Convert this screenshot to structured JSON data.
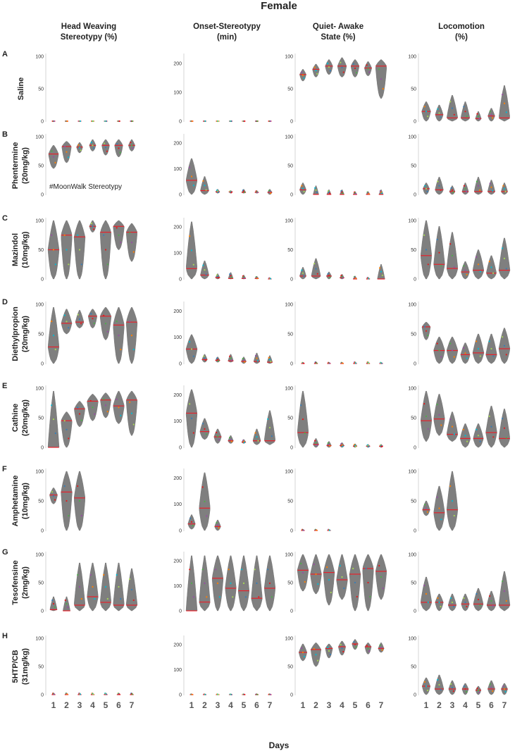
{
  "title": "Female",
  "xlabel": "Days",
  "columns": [
    {
      "key": "head_weaving",
      "line1": "Head Weaving",
      "line2": "Stereotypy (%)"
    },
    {
      "key": "onset",
      "line1": "Onset-Stereotypy",
      "line2": "(min)"
    },
    {
      "key": "quiet_awake",
      "line1": "Quiet- Awake",
      "line2": "State (%)"
    },
    {
      "key": "locomotion",
      "line1": "Locomotion",
      "line2": "(%)"
    }
  ],
  "rows": [
    {
      "letter": "A",
      "line1": "Saline",
      "line2": ""
    },
    {
      "letter": "B",
      "line1": "Phentermine",
      "line2": "(20mg/kg)"
    },
    {
      "letter": "C",
      "line1": "Mazindol",
      "line2": "(10mg/kg)"
    },
    {
      "letter": "D",
      "line1": "Diethylpropion",
      "line2": "(20mg/kg)"
    },
    {
      "letter": "E",
      "line1": "Cathine",
      "line2": "(20mg/kg)"
    },
    {
      "letter": "F",
      "line1": "Amphetamine",
      "line2": "(10mg/kg)"
    },
    {
      "letter": "G",
      "line1": "Tesofensine",
      "line2": "(2mg/kg)"
    },
    {
      "letter": "H",
      "line1": "5HTP/CB",
      "line2": "(31mg/kg)"
    }
  ],
  "annotation": {
    "row": 1,
    "col": 0,
    "text": "#MoonWalk Stereotypy"
  },
  "colors": {
    "violin": "#7f7f7f",
    "median": "#e8202a",
    "points": [
      "#e41a1c",
      "#4daf4a",
      "#984ea3",
      "#ff7f00",
      "#00bcd4",
      "#a6d854",
      "#377eb8"
    ]
  },
  "chart_data": {
    "type": "violin",
    "days": [
      "1",
      "2",
      "3",
      "4",
      "5",
      "6",
      "7"
    ],
    "yticks": {
      "head_weaving": [
        0,
        50,
        100
      ],
      "onset": [
        0,
        100,
        200
      ],
      "quiet_awake": [
        0,
        50,
        100
      ],
      "locomotion": [
        0,
        50,
        100
      ]
    },
    "ylim": {
      "head_weaving": [
        0,
        100
      ],
      "onset": [
        0,
        225
      ],
      "quiet_awake": [
        0,
        100
      ],
      "locomotion": [
        0,
        100
      ]
    },
    "panels": [
      [
        [
          [
            0,
            0,
            0
          ],
          [
            0,
            0,
            0
          ],
          [
            0,
            0,
            0
          ],
          [
            0,
            0,
            0
          ],
          [
            0,
            0,
            0
          ],
          [
            0,
            0,
            0
          ],
          [
            0,
            0,
            0
          ]
        ],
        [
          [
            0,
            0,
            0
          ],
          [
            0,
            0,
            0
          ],
          [
            0,
            0,
            0
          ],
          [
            0,
            0,
            0
          ],
          [
            0,
            0,
            0
          ],
          [
            0,
            0,
            0
          ],
          [
            0,
            0,
            0
          ]
        ],
        [
          [
            62,
            72,
            80
          ],
          [
            68,
            80,
            88
          ],
          [
            72,
            85,
            95
          ],
          [
            68,
            85,
            98
          ],
          [
            68,
            85,
            95
          ],
          [
            70,
            82,
            92
          ],
          [
            35,
            85,
            95
          ]
        ],
        [
          [
            0,
            15,
            30
          ],
          [
            0,
            10,
            25
          ],
          [
            0,
            5,
            40
          ],
          [
            0,
            5,
            30
          ],
          [
            0,
            4,
            15
          ],
          [
            0,
            8,
            20
          ],
          [
            0,
            5,
            55
          ]
        ]
      ],
      [
        [
          [
            45,
            70,
            85
          ],
          [
            55,
            83,
            92
          ],
          [
            72,
            82,
            90
          ],
          [
            75,
            85,
            95
          ],
          [
            68,
            85,
            95
          ],
          [
            65,
            85,
            95
          ],
          [
            75,
            85,
            95
          ]
        ],
        [
          [
            0,
            55,
            140
          ],
          [
            0,
            15,
            70
          ],
          [
            5,
            10,
            20
          ],
          [
            5,
            10,
            15
          ],
          [
            5,
            8,
            20
          ],
          [
            5,
            8,
            15
          ],
          [
            0,
            8,
            20
          ]
        ],
        [
          [
            0,
            8,
            20
          ],
          [
            0,
            0,
            15
          ],
          [
            0,
            0,
            8
          ],
          [
            0,
            0,
            8
          ],
          [
            0,
            0,
            5
          ],
          [
            0,
            0,
            5
          ],
          [
            0,
            0,
            8
          ]
        ],
        [
          [
            0,
            10,
            20
          ],
          [
            0,
            8,
            30
          ],
          [
            0,
            5,
            15
          ],
          [
            0,
            5,
            20
          ],
          [
            0,
            5,
            30
          ],
          [
            0,
            5,
            25
          ],
          [
            0,
            5,
            20
          ]
        ]
      ],
      [
        [
          [
            0,
            50,
            100
          ],
          [
            0,
            75,
            100
          ],
          [
            0,
            72,
            100
          ],
          [
            80,
            90,
            100
          ],
          [
            0,
            80,
            100
          ],
          [
            50,
            90,
            100
          ],
          [
            30,
            80,
            95
          ]
        ],
        [
          [
            0,
            40,
            220
          ],
          [
            0,
            15,
            70
          ],
          [
            0,
            5,
            20
          ],
          [
            0,
            2,
            25
          ],
          [
            0,
            2,
            15
          ],
          [
            0,
            2,
            10
          ],
          [
            0,
            0,
            5
          ]
        ],
        [
          [
            0,
            5,
            20
          ],
          [
            0,
            5,
            35
          ],
          [
            0,
            5,
            12
          ],
          [
            0,
            2,
            8
          ],
          [
            0,
            0,
            5
          ],
          [
            0,
            0,
            3
          ],
          [
            0,
            0,
            25
          ]
        ],
        [
          [
            0,
            40,
            100
          ],
          [
            0,
            25,
            90
          ],
          [
            0,
            18,
            80
          ],
          [
            0,
            12,
            30
          ],
          [
            0,
            15,
            50
          ],
          [
            0,
            10,
            40
          ],
          [
            0,
            15,
            70
          ]
        ]
      ],
      [
        [
          [
            0,
            28,
            95
          ],
          [
            50,
            68,
            92
          ],
          [
            60,
            70,
            90
          ],
          [
            60,
            80,
            92
          ],
          [
            40,
            80,
            95
          ],
          [
            0,
            65,
            95
          ],
          [
            0,
            70,
            95
          ]
        ],
        [
          [
            0,
            55,
            110
          ],
          [
            5,
            15,
            35
          ],
          [
            5,
            12,
            25
          ],
          [
            5,
            10,
            35
          ],
          [
            0,
            8,
            25
          ],
          [
            0,
            8,
            40
          ],
          [
            0,
            5,
            30
          ]
        ],
        [
          [
            0,
            0,
            2
          ],
          [
            0,
            0,
            3
          ],
          [
            0,
            0,
            2
          ],
          [
            0,
            0,
            2
          ],
          [
            0,
            0,
            3
          ],
          [
            0,
            0,
            3
          ],
          [
            0,
            0,
            2
          ]
        ],
        [
          [
            40,
            62,
            70
          ],
          [
            0,
            22,
            45
          ],
          [
            0,
            22,
            45
          ],
          [
            0,
            15,
            35
          ],
          [
            0,
            18,
            50
          ],
          [
            0,
            15,
            50
          ],
          [
            0,
            25,
            60
          ]
        ]
      ],
      [
        [
          [
            0,
            0,
            95
          ],
          [
            0,
            45,
            60
          ],
          [
            35,
            65,
            78
          ],
          [
            45,
            78,
            90
          ],
          [
            50,
            80,
            92
          ],
          [
            40,
            70,
            95
          ],
          [
            20,
            80,
            95
          ]
        ],
        [
          [
            0,
            130,
            220
          ],
          [
            30,
            60,
            110
          ],
          [
            15,
            40,
            70
          ],
          [
            15,
            25,
            45
          ],
          [
            15,
            20,
            30
          ],
          [
            10,
            25,
            70
          ],
          [
            10,
            25,
            140
          ]
        ],
        [
          [
            0,
            25,
            95
          ],
          [
            0,
            5,
            15
          ],
          [
            0,
            3,
            10
          ],
          [
            0,
            3,
            8
          ],
          [
            0,
            2,
            6
          ],
          [
            0,
            2,
            5
          ],
          [
            0,
            2,
            5
          ]
        ],
        [
          [
            10,
            45,
            95
          ],
          [
            20,
            48,
            90
          ],
          [
            10,
            22,
            60
          ],
          [
            0,
            15,
            40
          ],
          [
            0,
            15,
            40
          ],
          [
            0,
            25,
            70
          ],
          [
            0,
            15,
            65
          ]
        ]
      ],
      [
        [
          [
            45,
            60,
            72
          ],
          [
            0,
            65,
            100
          ],
          [
            0,
            55,
            100
          ],
          null,
          null,
          null,
          null
        ],
        [
          [
            5,
            25,
            60
          ],
          [
            0,
            85,
            220
          ],
          [
            0,
            15,
            40
          ],
          null,
          null,
          null,
          null
        ],
        [
          [
            0,
            0,
            2
          ],
          [
            0,
            0,
            2
          ],
          [
            0,
            0,
            2
          ],
          null,
          null,
          null,
          null
        ],
        [
          [
            25,
            35,
            50
          ],
          [
            0,
            30,
            75
          ],
          [
            0,
            35,
            100
          ],
          null,
          null,
          null,
          null
        ]
      ],
      [
        [
          [
            0,
            2,
            25
          ],
          [
            0,
            0,
            25
          ],
          [
            0,
            10,
            85
          ],
          [
            0,
            25,
            85
          ],
          [
            0,
            15,
            85
          ],
          [
            0,
            10,
            85
          ],
          [
            0,
            10,
            75
          ]
        ],
        [
          [
            0,
            0,
            220
          ],
          [
            0,
            35,
            220
          ],
          [
            0,
            130,
            220
          ],
          [
            0,
            90,
            220
          ],
          [
            0,
            80,
            220
          ],
          [
            0,
            50,
            220
          ],
          [
            0,
            90,
            220
          ]
        ],
        [
          [
            35,
            72,
            100
          ],
          [
            30,
            65,
            100
          ],
          [
            10,
            68,
            100
          ],
          [
            20,
            55,
            100
          ],
          [
            0,
            65,
            100
          ],
          [
            0,
            75,
            100
          ],
          [
            20,
            70,
            100
          ]
        ],
        [
          [
            0,
            15,
            60
          ],
          [
            0,
            15,
            30
          ],
          [
            0,
            10,
            30
          ],
          [
            0,
            12,
            30
          ],
          [
            0,
            12,
            40
          ],
          [
            0,
            10,
            35
          ],
          [
            0,
            10,
            70
          ]
        ]
      ],
      [
        [
          [
            0,
            0,
            3
          ],
          [
            0,
            0,
            3
          ],
          [
            0,
            0,
            3
          ],
          [
            0,
            0,
            3
          ],
          [
            0,
            0,
            3
          ],
          [
            0,
            0,
            3
          ],
          [
            0,
            0,
            3
          ]
        ],
        [
          [
            0,
            0,
            2
          ],
          [
            0,
            0,
            2
          ],
          [
            0,
            0,
            2
          ],
          [
            0,
            0,
            2
          ],
          [
            0,
            0,
            2
          ],
          [
            0,
            0,
            2
          ],
          [
            0,
            0,
            2
          ]
        ],
        [
          [
            60,
            75,
            90
          ],
          [
            50,
            80,
            92
          ],
          [
            65,
            82,
            90
          ],
          [
            70,
            85,
            95
          ],
          [
            80,
            90,
            98
          ],
          [
            72,
            85,
            92
          ],
          [
            75,
            82,
            92
          ]
        ],
        [
          [
            0,
            15,
            30
          ],
          [
            0,
            10,
            35
          ],
          [
            0,
            10,
            25
          ],
          [
            0,
            10,
            20
          ],
          [
            0,
            8,
            15
          ],
          [
            0,
            10,
            25
          ],
          [
            0,
            10,
            20
          ]
        ]
      ]
    ]
  }
}
